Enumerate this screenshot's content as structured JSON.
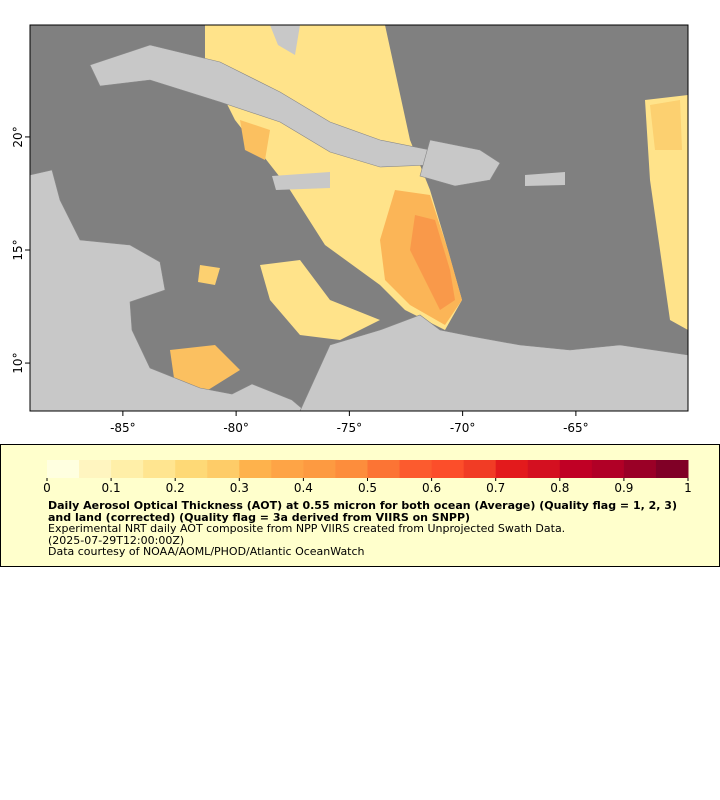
{
  "map": {
    "xlim": [
      -89.1,
      -60.05
    ],
    "ylim": [
      7.88,
      24.95
    ],
    "xticks": [
      {
        "value": -85,
        "label": "-85°"
      },
      {
        "value": -80,
        "label": "-80°"
      },
      {
        "value": -75,
        "label": "-75°"
      },
      {
        "value": -70,
        "label": "-70°"
      },
      {
        "value": -65,
        "label": "-65°"
      }
    ],
    "yticks": [
      {
        "value": 10,
        "label": "10°"
      },
      {
        "value": 15,
        "label": "15°"
      },
      {
        "value": 20,
        "label": "20°"
      }
    ],
    "colorbar": {
      "range": [
        0,
        1
      ],
      "ticks": [
        0,
        0.1,
        0.2,
        0.3,
        0.4,
        0.5,
        0.6,
        0.7,
        0.8,
        0.9,
        1
      ],
      "colors": [
        "#ffffe0",
        "#fff5c0",
        "#ffefa8",
        "#ffe590",
        "#fed976",
        "#fecc68",
        "#feb24c",
        "#fea446",
        "#fd9a41",
        "#fd8d3c",
        "#fc7434",
        "#fc5b2e",
        "#fc4e2a",
        "#f13c25",
        "#e31a1c",
        "#d41020",
        "#c00025",
        "#b10026",
        "#9a0026",
        "#800026"
      ]
    },
    "caption": {
      "title": "Daily Aerosol Optical Thickness (AOT) at 0.55 micron for both ocean (Average) (Quality flag = 1, 2, 3) and land (corrected) (Quality flag = 3a derived from VIIRS on SNPP)",
      "lines": [
        "Experimental NRT daily AOT composite from NPP VIIRS created from Unprojected Swath Data.",
        "(2025-07-29T12:00:00Z)",
        "Data courtesy of NOAA/AOML/PHOD/Atlantic OceanWatch"
      ]
    }
  }
}
